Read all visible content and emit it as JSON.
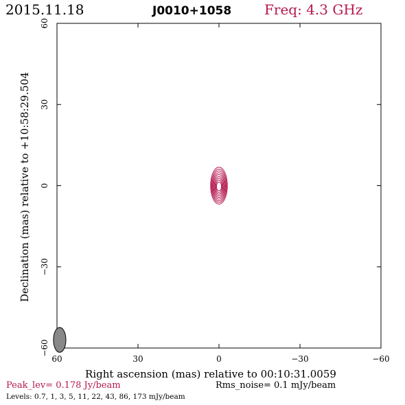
{
  "header": {
    "date": "2015.11.18",
    "source": "J0010+1058",
    "frequency": "Freq: 4.3 GHz"
  },
  "colors": {
    "accent": "#b5174f",
    "contour": "#b5174f",
    "beam_fill": "#888888"
  },
  "chart_data": {
    "type": "contour",
    "xlabel": "Right ascension (mas) relative to 00:10:31.0059",
    "ylabel": "Declination (mas) relative to +10:58:29.504",
    "xlim": [
      60,
      -60
    ],
    "ylim": [
      -60,
      60
    ],
    "xticks": [
      60,
      30,
      0,
      -30,
      -60
    ],
    "yticks": [
      -60,
      -30,
      0,
      30,
      60
    ],
    "xtick_labels": [
      "60",
      "30",
      "0",
      "−30",
      "−60"
    ],
    "ytick_labels": [
      "−60",
      "−30",
      "0",
      "30",
      "60"
    ],
    "source_center": [
      0,
      0
    ],
    "contour_levels_mJy": [
      0.7,
      1,
      3,
      5,
      11,
      22,
      43,
      86,
      173
    ],
    "beam": {
      "center": [
        59,
        -57
      ],
      "major_mas": 4.6,
      "minor_mas": 2.3,
      "pa_deg": 0
    }
  },
  "footer": {
    "peak": "Peak_lev=  0.178 Jy/beam",
    "rms": "Rms_noise=  0.1 mJy/beam",
    "levels": "Levels: 0.7,    1,    3,    5,   11,   22,   43,   86,  173 mJy/beam"
  }
}
